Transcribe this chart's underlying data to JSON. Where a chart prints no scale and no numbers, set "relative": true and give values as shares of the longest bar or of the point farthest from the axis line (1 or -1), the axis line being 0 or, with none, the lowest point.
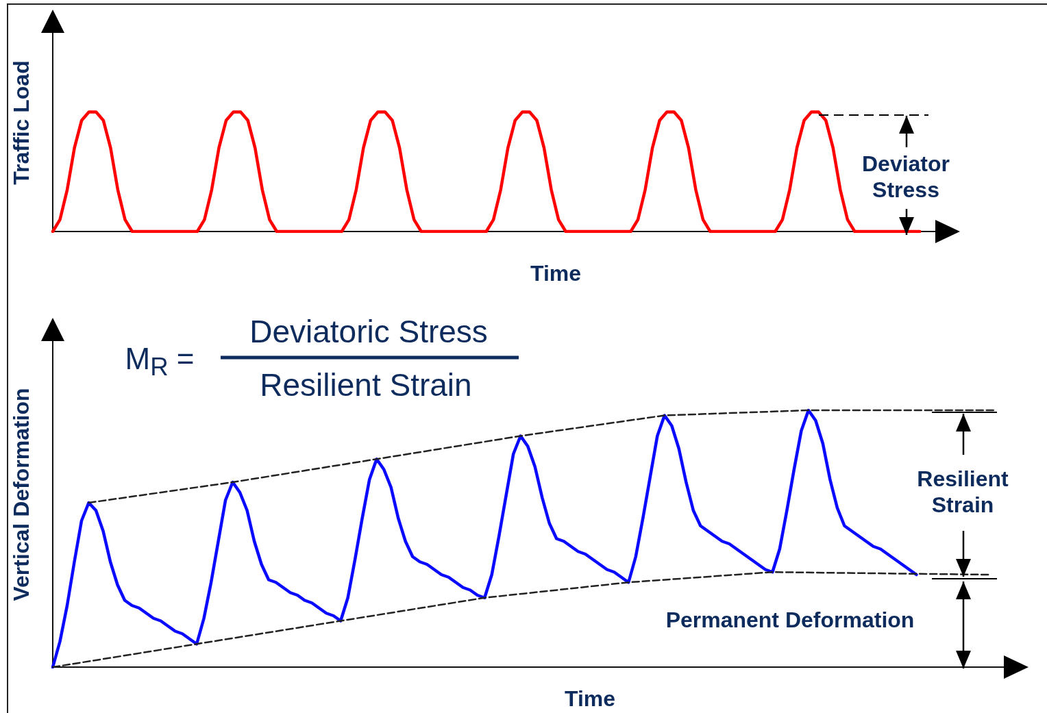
{
  "chart_data": [
    {
      "type": "line",
      "relative": true,
      "marker": "none",
      "xlabel": "Time",
      "ylabel": "Traffic Load",
      "annotations": [
        "Deviator Stress"
      ],
      "categories": [
        null,
        null,
        null,
        null,
        null,
        null,
        null,
        null,
        null,
        null,
        null,
        null,
        null,
        null,
        null,
        null,
        null,
        null,
        null,
        null,
        null,
        null,
        null,
        null,
        null,
        null,
        null,
        null,
        null,
        null,
        null,
        null,
        null,
        null,
        null,
        null,
        null,
        null,
        null,
        null,
        null,
        null,
        null,
        null,
        null,
        null,
        null,
        null,
        null,
        null,
        null,
        null,
        null,
        null,
        null,
        null,
        null,
        null,
        null,
        null,
        null,
        null,
        null,
        null,
        null,
        null,
        null,
        null,
        null,
        null,
        null,
        null,
        null,
        null,
        null,
        null,
        null,
        null,
        null,
        null,
        null,
        null,
        null,
        null,
        null,
        null,
        null,
        null,
        null,
        null,
        null,
        null,
        null,
        null,
        null,
        null,
        null,
        null,
        null,
        null,
        null,
        null,
        null,
        null,
        null,
        null,
        null,
        null,
        null,
        null,
        null,
        null,
        null,
        null,
        null,
        null,
        null,
        null,
        null,
        null,
        null,
        null,
        null,
        null,
        null,
        null
      ],
      "series": [
        {
          "color": "#ff0000",
          "line_style": "solid",
          "values": [
            0,
            0.1,
            0.35,
            0.7,
            0.93,
            1,
            1,
            0.93,
            0.7,
            0.35,
            0.1,
            0,
            0,
            0,
            0,
            0,
            0,
            0,
            0,
            0,
            0,
            0.1,
            0.35,
            0.7,
            0.93,
            1,
            1,
            0.93,
            0.7,
            0.35,
            0.1,
            0,
            0,
            0,
            0,
            0,
            0,
            0,
            0,
            0,
            0,
            0.1,
            0.35,
            0.7,
            0.93,
            1,
            1,
            0.93,
            0.7,
            0.35,
            0.1,
            0,
            0,
            0,
            0,
            0,
            0,
            0,
            0,
            0,
            0,
            0.1,
            0.35,
            0.7,
            0.93,
            1,
            1,
            0.93,
            0.7,
            0.35,
            0.1,
            0,
            0,
            0,
            0,
            0,
            0,
            0,
            0,
            0,
            0,
            0.1,
            0.35,
            0.7,
            0.93,
            1,
            1,
            0.93,
            0.7,
            0.35,
            0.1,
            0,
            0,
            0,
            0,
            0,
            0,
            0,
            0,
            0,
            0,
            0.1,
            0.35,
            0.7,
            0.93,
            1,
            1,
            0.93,
            0.7,
            0.35,
            0.1,
            0,
            0,
            0,
            0,
            0,
            0,
            0,
            0,
            0,
            0,
            null,
            null,
            null,
            null,
            null
          ]
        }
      ]
    },
    {
      "type": "line",
      "relative": true,
      "marker": "none",
      "xlabel": "Time",
      "ylabel": "Vertical Deformation",
      "annotations": [
        "M$_{R}$ =",
        "Deviatoric Stress",
        "Resilient Strain",
        "Resilient Strain",
        "Permanent Deformation"
      ],
      "categories": [
        null,
        null,
        null,
        null,
        null,
        null,
        null,
        null,
        null,
        null,
        null,
        null,
        null,
        null,
        null,
        null,
        null,
        null,
        null,
        null,
        null,
        null,
        null,
        null,
        null,
        null,
        null,
        null,
        null,
        null,
        null,
        null,
        null,
        null,
        null,
        null,
        null,
        null,
        null,
        null,
        null,
        null,
        null,
        null,
        null,
        null,
        null,
        null,
        null,
        null,
        null,
        null,
        null,
        null,
        null,
        null,
        null,
        null,
        null,
        null,
        null,
        null,
        null,
        null,
        null,
        null,
        null,
        null,
        null,
        null,
        null,
        null,
        null,
        null,
        null,
        null,
        null,
        null,
        null,
        null,
        null,
        null,
        null,
        null,
        null,
        null,
        null,
        null,
        null,
        null,
        null,
        null,
        null,
        null,
        null,
        null,
        null,
        null,
        null,
        null,
        null,
        null,
        null,
        null,
        null,
        null,
        null,
        null,
        null,
        null,
        null,
        null,
        null,
        null,
        null,
        null,
        null,
        null,
        null,
        null,
        null,
        null,
        null,
        null,
        null,
        null,
        null,
        null,
        null,
        null,
        null,
        null,
        null,
        null,
        null,
        null
      ],
      "series": [
        {
          "color": "#0a0aff",
          "line_style": "solid",
          "values": [
            0,
            0.1,
            0.24,
            0.41,
            0.57,
            0.64,
            0.61,
            0.53,
            0.41,
            0.32,
            0.26,
            0.24,
            0.23,
            0.21,
            0.19,
            0.18,
            0.16,
            0.14,
            0.13,
            0.11,
            0.09,
            0.19,
            0.33,
            0.49,
            0.65,
            0.72,
            0.68,
            0.61,
            0.49,
            0.4,
            0.34,
            0.33,
            0.31,
            0.29,
            0.28,
            0.26,
            0.25,
            0.23,
            0.21,
            0.2,
            0.18,
            0.27,
            0.42,
            0.58,
            0.73,
            0.81,
            0.77,
            0.7,
            0.58,
            0.49,
            0.43,
            0.41,
            0.4,
            0.38,
            0.36,
            0.35,
            0.33,
            0.31,
            0.3,
            0.28,
            0.27,
            0.36,
            0.51,
            0.67,
            0.83,
            0.9,
            0.86,
            0.78,
            0.66,
            0.56,
            0.5,
            0.49,
            0.47,
            0.45,
            0.44,
            0.42,
            0.4,
            0.38,
            0.37,
            0.35,
            0.33,
            0.43,
            0.58,
            0.74,
            0.9,
            0.98,
            0.94,
            0.85,
            0.72,
            0.61,
            0.55,
            0.53,
            0.51,
            0.49,
            0.48,
            0.46,
            0.44,
            0.42,
            0.4,
            0.38,
            0.37,
            0.46,
            0.61,
            0.77,
            0.92,
            1,
            0.96,
            0.87,
            0.73,
            0.62,
            0.55,
            0.53,
            0.51,
            0.49,
            0.47,
            0.46,
            0.44,
            0.42,
            0.4,
            0.38,
            0.36,
            null,
            null,
            null,
            null,
            null,
            null,
            null,
            null,
            null,
            null,
            null,
            null,
            null,
            null,
            null
          ]
        },
        {
          "color": "#222222",
          "line_style": "dashed",
          "values": [
            null,
            null,
            null,
            null,
            null,
            0.64,
            null,
            null,
            null,
            null,
            null,
            null,
            null,
            null,
            null,
            null,
            null,
            null,
            null,
            null,
            null,
            null,
            null,
            null,
            null,
            0.72,
            null,
            null,
            null,
            null,
            null,
            null,
            null,
            null,
            null,
            null,
            null,
            null,
            null,
            null,
            null,
            null,
            null,
            null,
            null,
            0.81,
            null,
            null,
            null,
            null,
            null,
            null,
            null,
            null,
            null,
            null,
            null,
            null,
            null,
            null,
            null,
            null,
            null,
            null,
            null,
            0.9,
            null,
            null,
            null,
            null,
            null,
            null,
            null,
            null,
            null,
            null,
            null,
            null,
            null,
            null,
            null,
            null,
            null,
            null,
            null,
            0.98,
            null,
            null,
            null,
            null,
            null,
            null,
            null,
            null,
            null,
            null,
            null,
            null,
            null,
            null,
            null,
            null,
            null,
            null,
            null,
            1,
            null,
            null,
            null,
            null,
            null,
            null,
            null,
            null,
            null,
            null,
            null,
            null,
            null,
            null,
            null,
            null,
            null,
            null,
            null,
            null,
            null,
            null,
            null,
            null,
            null,
            1,
            null,
            null,
            null,
            null
          ]
        },
        {
          "color": "#222222",
          "line_style": "dashed",
          "values": [
            0,
            null,
            null,
            null,
            null,
            null,
            null,
            null,
            null,
            null,
            null,
            null,
            null,
            null,
            null,
            null,
            null,
            null,
            null,
            null,
            0.09,
            null,
            null,
            null,
            null,
            null,
            null,
            null,
            null,
            null,
            null,
            null,
            null,
            null,
            null,
            null,
            null,
            null,
            null,
            null,
            0.18,
            null,
            null,
            null,
            null,
            null,
            null,
            null,
            null,
            null,
            null,
            null,
            null,
            null,
            null,
            null,
            null,
            null,
            null,
            null,
            0.27,
            null,
            null,
            null,
            null,
            null,
            null,
            null,
            null,
            null,
            null,
            null,
            null,
            null,
            null,
            null,
            null,
            null,
            null,
            null,
            0.33,
            null,
            null,
            null,
            null,
            null,
            null,
            null,
            null,
            null,
            null,
            null,
            null,
            null,
            null,
            null,
            null,
            null,
            null,
            null,
            0.37,
            null,
            null,
            null,
            null,
            null,
            null,
            null,
            null,
            null,
            null,
            null,
            null,
            null,
            null,
            null,
            null,
            null,
            null,
            null,
            null,
            null,
            null,
            null,
            null,
            null,
            null,
            null,
            null,
            null,
            0.36,
            null,
            null,
            null,
            null,
            null
          ]
        }
      ]
    }
  ]
}
